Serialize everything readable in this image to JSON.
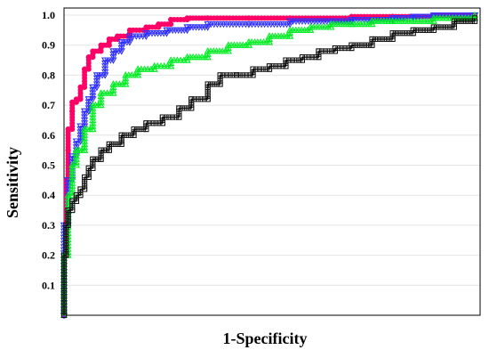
{
  "chart_data": {
    "type": "line",
    "title": "",
    "xlabel": "1-Specificity",
    "ylabel": "Sensitivity",
    "xlim": [
      0,
      1
    ],
    "ylim": [
      0,
      1
    ],
    "yticks": [
      "0.1",
      "0.2",
      "0.3",
      "0.4",
      "0.5",
      "0.6",
      "0.7",
      "0.8",
      "0.9",
      "1.0"
    ],
    "grid": true,
    "series": [
      {
        "color": "#ff0066",
        "marker": "circle",
        "x": [
          0,
          0,
          0.005,
          0.005,
          0.01,
          0.01,
          0.02,
          0.02,
          0.03,
          0.04,
          0.05,
          0.06,
          0.07,
          0.09,
          0.11,
          0.13,
          0.16,
          0.2,
          0.23,
          0.26,
          0.3,
          0.35,
          0.45,
          0.55,
          0.7,
          0.8,
          0.9,
          0.95,
          1.0
        ],
        "y": [
          0,
          0.2,
          0.3,
          0.45,
          0.55,
          0.62,
          0.68,
          0.71,
          0.72,
          0.76,
          0.82,
          0.86,
          0.88,
          0.9,
          0.92,
          0.93,
          0.95,
          0.96,
          0.97,
          0.985,
          0.99,
          0.99,
          0.99,
          0.99,
          0.995,
          0.995,
          1.0,
          1.0,
          1.0
        ]
      },
      {
        "color": "#3333ff",
        "marker": "triangle-down",
        "x": [
          0,
          0,
          0.01,
          0.02,
          0.03,
          0.04,
          0.05,
          0.06,
          0.07,
          0.08,
          0.1,
          0.12,
          0.14,
          0.16,
          0.2,
          0.25,
          0.3,
          0.35,
          0.45,
          0.55,
          0.7,
          0.8,
          0.85,
          0.9,
          1.0
        ],
        "y": [
          0,
          0.3,
          0.45,
          0.53,
          0.58,
          0.63,
          0.68,
          0.72,
          0.76,
          0.8,
          0.85,
          0.88,
          0.91,
          0.93,
          0.94,
          0.95,
          0.96,
          0.97,
          0.97,
          0.98,
          0.985,
          0.99,
          0.995,
          1.0,
          1.0
        ]
      },
      {
        "color": "#00ee22",
        "marker": "triangle-up",
        "x": [
          0,
          0,
          0.01,
          0.02,
          0.03,
          0.05,
          0.07,
          0.09,
          0.12,
          0.15,
          0.18,
          0.22,
          0.26,
          0.3,
          0.35,
          0.4,
          0.45,
          0.5,
          0.55,
          0.6,
          0.65,
          0.7,
          0.75,
          0.8,
          0.9,
          1.0
        ],
        "y": [
          0,
          0.2,
          0.4,
          0.5,
          0.55,
          0.62,
          0.7,
          0.74,
          0.77,
          0.8,
          0.82,
          0.83,
          0.85,
          0.86,
          0.88,
          0.9,
          0.91,
          0.93,
          0.95,
          0.96,
          0.97,
          0.97,
          0.98,
          0.98,
          0.99,
          1.0
        ]
      },
      {
        "color": "#111111",
        "marker": "square",
        "x": [
          0,
          0,
          0.005,
          0.01,
          0.02,
          0.03,
          0.04,
          0.05,
          0.06,
          0.07,
          0.09,
          0.11,
          0.14,
          0.17,
          0.2,
          0.24,
          0.28,
          0.31,
          0.35,
          0.38,
          0.42,
          0.46,
          0.5,
          0.54,
          0.58,
          0.62,
          0.66,
          0.7,
          0.75,
          0.8,
          0.85,
          0.9,
          0.95,
          1.0
        ],
        "y": [
          0,
          0.2,
          0.3,
          0.35,
          0.38,
          0.4,
          0.42,
          0.46,
          0.49,
          0.52,
          0.55,
          0.57,
          0.6,
          0.62,
          0.64,
          0.66,
          0.69,
          0.72,
          0.77,
          0.8,
          0.8,
          0.82,
          0.83,
          0.85,
          0.86,
          0.88,
          0.89,
          0.9,
          0.92,
          0.94,
          0.95,
          0.96,
          0.98,
          0.99
        ]
      }
    ]
  }
}
